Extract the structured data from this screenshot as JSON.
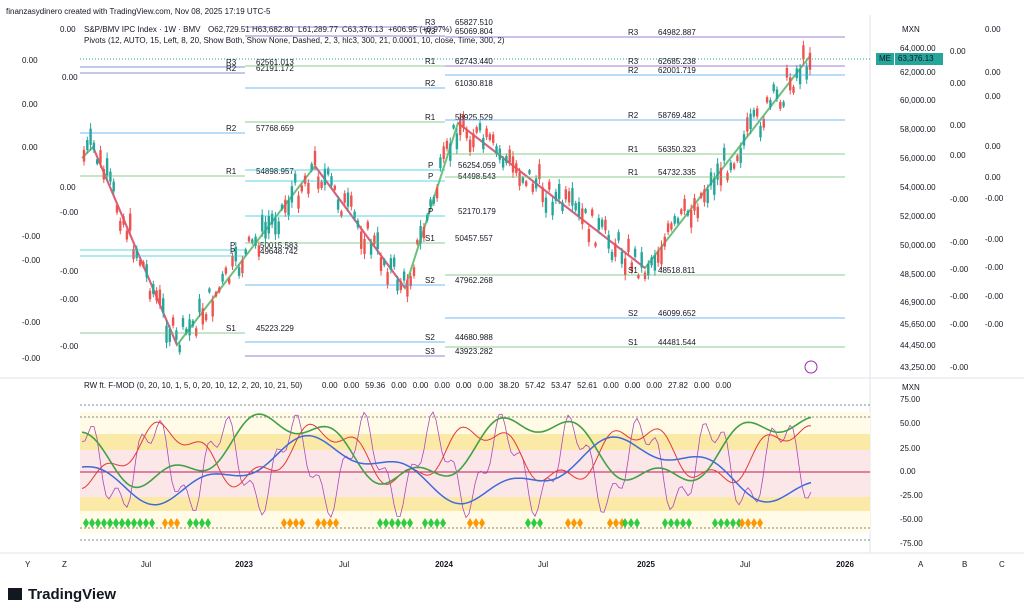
{
  "header": {
    "credit": "finanzasydinero created with TradingView.com, Nov 08, 2025 17:19 UTC-5"
  },
  "main_legend": {
    "symbol": "S&P/BMV IPC Index · 1W · BMV",
    "open": "O62,729.51",
    "high": "H63,682.80",
    "low": "L61,289.77",
    "close": "C63,376.13",
    "change": "+606.95 (+0.97%)",
    "pivots": "Pivots (12, AUTO, 15, Left, 8, 20, Show Both, Show None, Dashed, 2, 3, hlc3, 300, 21, 0.0001, 10, close, Time, 300, 2)"
  },
  "price_axis": {
    "currency": "MXN",
    "labels": [
      "64,000.00",
      "62,000.00",
      "60,000.00",
      "58,000.00",
      "56,000.00",
      "54,000.00",
      "52,000.00",
      "50,000.00",
      "48,500.00",
      "46,900.00",
      "45,650.00",
      "44,450.00",
      "43,250.00"
    ],
    "last_tag": "ME",
    "last": "63,376.13"
  },
  "pivot_labels": [
    {
      "name": "R3",
      "value": "62561.013"
    },
    {
      "name": "R2",
      "value": "62191.172"
    },
    {
      "name": "R2",
      "value": "57768.659"
    },
    {
      "name": "R1",
      "value": "54898.957"
    },
    {
      "name": "P",
      "value": "50015.583"
    },
    {
      "name": "P",
      "value": "49648.742"
    },
    {
      "name": "S1",
      "value": "45223.229"
    },
    {
      "name": "R3",
      "value": "65827.510"
    },
    {
      "name": "R3",
      "value": "65069.804"
    },
    {
      "name": "R1",
      "value": "62743.440"
    },
    {
      "name": "R2",
      "value": "61030.818"
    },
    {
      "name": "R1",
      "value": "58925.529"
    },
    {
      "name": "P",
      "value": "56254.059"
    },
    {
      "name": "P",
      "value": "54498.543"
    },
    {
      "name": "P",
      "value": "52170.179"
    },
    {
      "name": "S1",
      "value": "50457.557"
    },
    {
      "name": "S2",
      "value": "47962.268"
    },
    {
      "name": "S2",
      "value": "44680.988"
    },
    {
      "name": "S3",
      "value": "43923.282"
    },
    {
      "name": "R3",
      "value": "64982.887"
    },
    {
      "name": "R3",
      "value": "62685.238"
    },
    {
      "name": "R2",
      "value": "62001.719"
    },
    {
      "name": "R2",
      "value": "58769.482"
    },
    {
      "name": "R1",
      "value": "56350.323"
    },
    {
      "name": "R1",
      "value": "54732.335"
    },
    {
      "name": "S1",
      "value": "48518.811"
    },
    {
      "name": "S2",
      "value": "46099.652"
    },
    {
      "name": "S1",
      "value": "44481.544"
    }
  ],
  "left_values": [
    "0.00",
    "0.00",
    "0.00",
    "0.00",
    "0.00",
    "0.00",
    "-0.00",
    "-0.00",
    "-0.00",
    "-0.00",
    "-0.00",
    "-0.00",
    "-0.00",
    "-0.00"
  ],
  "right_values": [
    "0.00",
    "0.00",
    "0.00",
    "0.00",
    "0.00",
    "0.00",
    "0.00",
    "0.00",
    "0.00",
    "-0.00",
    "-0.00",
    "-0.00",
    "-0.00",
    "-0.00",
    "-0.00",
    "-0.00",
    "-0.00",
    "-0.00",
    "-0.00",
    "-0.00"
  ],
  "indicator": {
    "legend": "RW ft. F-MOD (0, 20, 10, 1, 5, 0, 20, 10, 12, 2, 20, 10, 21, 50)",
    "values": [
      {
        "text": "0.00",
        "color": "#f5a623"
      },
      {
        "text": "0.00",
        "color": "#4caf50"
      },
      {
        "text": "59.36",
        "color": "#9c27b0"
      },
      {
        "text": "0.00",
        "color": "#9c27b0"
      },
      {
        "text": "0.00",
        "color": "#9c27b0"
      },
      {
        "text": "0.00",
        "color": "#9c27b0"
      },
      {
        "text": "0.00",
        "color": "#e53935"
      },
      {
        "text": "0.00",
        "color": "#3f51b5"
      },
      {
        "text": "38.20",
        "color": "#4caf50"
      },
      {
        "text": "57.42",
        "color": "#e53935"
      },
      {
        "text": "53.47",
        "color": "#ab47bc"
      },
      {
        "text": "52.61",
        "color": "#f5a623"
      },
      {
        "text": "0.00",
        "color": "#e53935"
      },
      {
        "text": "0.00",
        "color": "#3f51b5"
      },
      {
        "text": "0.00",
        "color": "#3f51b5"
      },
      {
        "text": "27.82",
        "color": "#3f51b5"
      },
      {
        "text": "0.00",
        "color": "#e53935"
      },
      {
        "text": "0.00",
        "color": "#3f51b5"
      }
    ],
    "currency": "MXN",
    "labels": [
      "75.00",
      "50.00",
      "25.00",
      "0.00",
      "-25.00",
      "-50.00",
      "-75.00"
    ]
  },
  "time_axis": [
    "Jul",
    "2023",
    "Jul",
    "2024",
    "Jul",
    "2025",
    "Jul",
    "2026"
  ],
  "corner_letters": [
    "Y",
    "Z",
    "A",
    "B",
    "C"
  ],
  "footer": {
    "brand": "TradingView"
  }
}
